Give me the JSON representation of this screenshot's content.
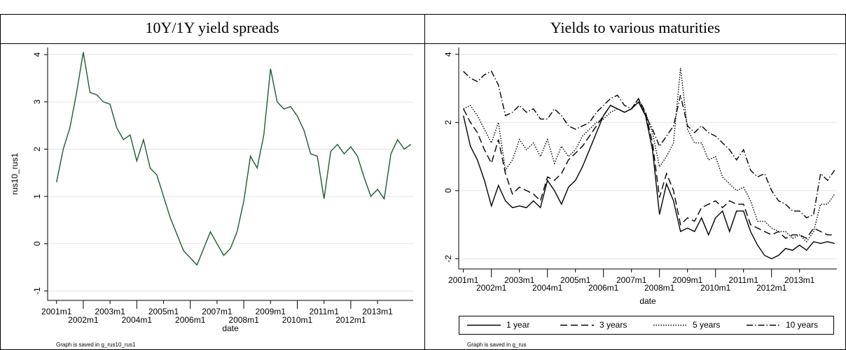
{
  "chart_data": [
    {
      "type": "line",
      "title": "10Y/1Y yield spreads",
      "y_label": "rus10_rus1",
      "x_label": "date",
      "note": "Graph is saved in g_rus10_rus1",
      "color": "#1b5e2b",
      "grid": true,
      "x": [
        "2001m1",
        "2001m4",
        "2001m7",
        "2001m10",
        "2002m1",
        "2002m4",
        "2002m7",
        "2002m10",
        "2003m1",
        "2003m4",
        "2003m7",
        "2003m10",
        "2004m1",
        "2004m4",
        "2004m7",
        "2004m10",
        "2005m1",
        "2005m4",
        "2005m7",
        "2005m10",
        "2006m1",
        "2006m4",
        "2006m7",
        "2006m10",
        "2007m1",
        "2007m4",
        "2007m7",
        "2007m10",
        "2008m1",
        "2008m4",
        "2008m7",
        "2008m10",
        "2009m1",
        "2009m4",
        "2009m7",
        "2009m10",
        "2010m1",
        "2010m4",
        "2010m7",
        "2010m10",
        "2011m1",
        "2011m4",
        "2011m7",
        "2011m10",
        "2012m1",
        "2012m4",
        "2012m7",
        "2012m10",
        "2013m1",
        "2013m4",
        "2013m7",
        "2013m10",
        "2014m1",
        "2014m4"
      ],
      "values": [
        1.3,
        2.0,
        2.45,
        3.2,
        4.05,
        3.2,
        3.15,
        3.0,
        2.95,
        2.45,
        2.2,
        2.3,
        1.75,
        2.2,
        1.6,
        1.45,
        1.0,
        0.55,
        0.2,
        -0.15,
        -0.3,
        -0.45,
        -0.1,
        0.25,
        0.0,
        -0.25,
        -0.1,
        0.25,
        0.9,
        1.85,
        1.6,
        2.3,
        3.7,
        3.0,
        2.85,
        2.9,
        2.7,
        2.4,
        1.9,
        1.85,
        0.95,
        1.95,
        2.1,
        1.9,
        2.05,
        1.85,
        1.4,
        1.0,
        1.15,
        0.95,
        1.9,
        2.2,
        2.0,
        2.1
      ],
      "xlim": [
        "2000m9",
        "2014m5"
      ],
      "xticks": [
        "2001m1",
        "2002m1",
        "2003m1",
        "2004m1",
        "2005m1",
        "2006m1",
        "2007m1",
        "2008m1",
        "2009m1",
        "2010m1",
        "2011m1",
        "2012m1",
        "2013m1"
      ],
      "ylim": [
        -1.2,
        4.15
      ],
      "yticks": [
        -1,
        0,
        1,
        2,
        3,
        4
      ]
    },
    {
      "type": "line",
      "title": "Yields to various maturities",
      "x_label": "date",
      "note": "Graph is saved in g_rus",
      "grid": true,
      "legend": "bottom",
      "x": [
        "2001m1",
        "2001m4",
        "2001m7",
        "2001m10",
        "2002m1",
        "2002m4",
        "2002m7",
        "2002m10",
        "2003m1",
        "2003m4",
        "2003m7",
        "2003m10",
        "2004m1",
        "2004m4",
        "2004m7",
        "2004m10",
        "2005m1",
        "2005m4",
        "2005m7",
        "2005m10",
        "2006m1",
        "2006m4",
        "2006m7",
        "2006m10",
        "2007m1",
        "2007m4",
        "2007m7",
        "2007m10",
        "2008m1",
        "2008m4",
        "2008m7",
        "2008m10",
        "2009m1",
        "2009m4",
        "2009m7",
        "2009m10",
        "2010m1",
        "2010m4",
        "2010m7",
        "2010m10",
        "2011m1",
        "2011m4",
        "2011m7",
        "2011m10",
        "2012m1",
        "2012m4",
        "2012m7",
        "2012m10",
        "2013m1",
        "2013m4",
        "2013m7",
        "2013m10",
        "2014m1",
        "2014m4"
      ],
      "series": [
        {
          "name": "1 year",
          "color": "#000000",
          "line_style": "solid",
          "values": [
            2.2,
            1.3,
            0.9,
            0.3,
            -0.45,
            0.15,
            -0.3,
            -0.5,
            -0.45,
            -0.5,
            -0.3,
            -0.5,
            0.3,
            0.0,
            -0.4,
            0.1,
            0.3,
            0.7,
            1.2,
            1.7,
            2.2,
            2.5,
            2.4,
            2.3,
            2.4,
            2.6,
            2.2,
            1.2,
            -0.7,
            0.2,
            -0.3,
            -1.2,
            -1.1,
            -1.2,
            -0.8,
            -1.3,
            -0.8,
            -0.6,
            -1.2,
            -0.6,
            -0.6,
            -1.2,
            -1.6,
            -1.9,
            -2.0,
            -1.9,
            -1.7,
            -1.75,
            -1.6,
            -1.75,
            -1.5,
            -1.55,
            -1.5,
            -1.55
          ]
        },
        {
          "name": "3 years",
          "color": "#000000",
          "line_style": "dashed",
          "values": [
            2.4,
            2.0,
            1.7,
            1.2,
            0.8,
            1.5,
            0.5,
            -0.1,
            0.1,
            0.0,
            -0.1,
            -0.3,
            0.4,
            0.3,
            0.5,
            0.9,
            1.1,
            1.3,
            1.6,
            1.9,
            2.2,
            2.5,
            2.4,
            2.3,
            2.4,
            2.7,
            2.3,
            1.4,
            -0.2,
            0.5,
            0.0,
            -1.0,
            -0.8,
            -0.9,
            -0.5,
            -0.4,
            -0.3,
            -0.5,
            -0.3,
            -0.4,
            -0.4,
            -1.0,
            -1.1,
            -1.2,
            -1.3,
            -1.2,
            -1.4,
            -1.3,
            -1.3,
            -1.4,
            -1.1,
            -1.2,
            -1.3,
            -1.3
          ]
        },
        {
          "name": "5 years",
          "color": "#000000",
          "line_style": "dotted",
          "values": [
            2.4,
            2.5,
            2.2,
            1.8,
            1.4,
            2.0,
            0.6,
            0.9,
            1.5,
            1.2,
            1.4,
            1.0,
            1.5,
            0.8,
            1.3,
            1.0,
            1.2,
            1.6,
            1.8,
            2.0,
            2.1,
            2.3,
            2.4,
            2.3,
            2.4,
            2.6,
            2.3,
            1.7,
            0.7,
            1.0,
            1.4,
            3.6,
            1.8,
            1.4,
            1.4,
            0.9,
            1.0,
            0.4,
            0.2,
            0.0,
            0.1,
            -0.3,
            -0.9,
            -0.9,
            -1.1,
            -1.2,
            -1.2,
            -1.4,
            -1.3,
            -1.5,
            -1.2,
            -0.4,
            -0.4,
            -0.1
          ]
        },
        {
          "name": "10 years",
          "color": "#000000",
          "line_style": "dashdot",
          "values": [
            3.5,
            3.3,
            3.2,
            3.4,
            3.5,
            3.1,
            2.2,
            2.3,
            2.5,
            2.3,
            2.4,
            2.1,
            2.1,
            2.4,
            2.2,
            1.9,
            1.8,
            1.9,
            2.0,
            2.3,
            2.5,
            2.7,
            2.8,
            2.5,
            2.4,
            2.7,
            2.2,
            1.8,
            1.3,
            1.6,
            1.9,
            2.8,
            1.9,
            1.7,
            1.9,
            1.7,
            1.6,
            1.4,
            1.2,
            0.9,
            1.2,
            0.6,
            0.4,
            0.5,
            0.0,
            -0.3,
            -0.4,
            -0.6,
            -0.6,
            -0.8,
            -0.7,
            0.5,
            0.3,
            0.6
          ]
        }
      ],
      "xlim": [
        "2000m11",
        "2014m5"
      ],
      "xticks": [
        "2001m1",
        "2002m1",
        "2003m1",
        "2004m1",
        "2005m1",
        "2006m1",
        "2007m1",
        "2008m1",
        "2009m1",
        "2010m1",
        "2011m1",
        "2012m1",
        "2013m1"
      ],
      "ylim": [
        -2.3,
        4.2
      ],
      "yticks": [
        -2,
        0,
        2,
        4
      ]
    }
  ]
}
